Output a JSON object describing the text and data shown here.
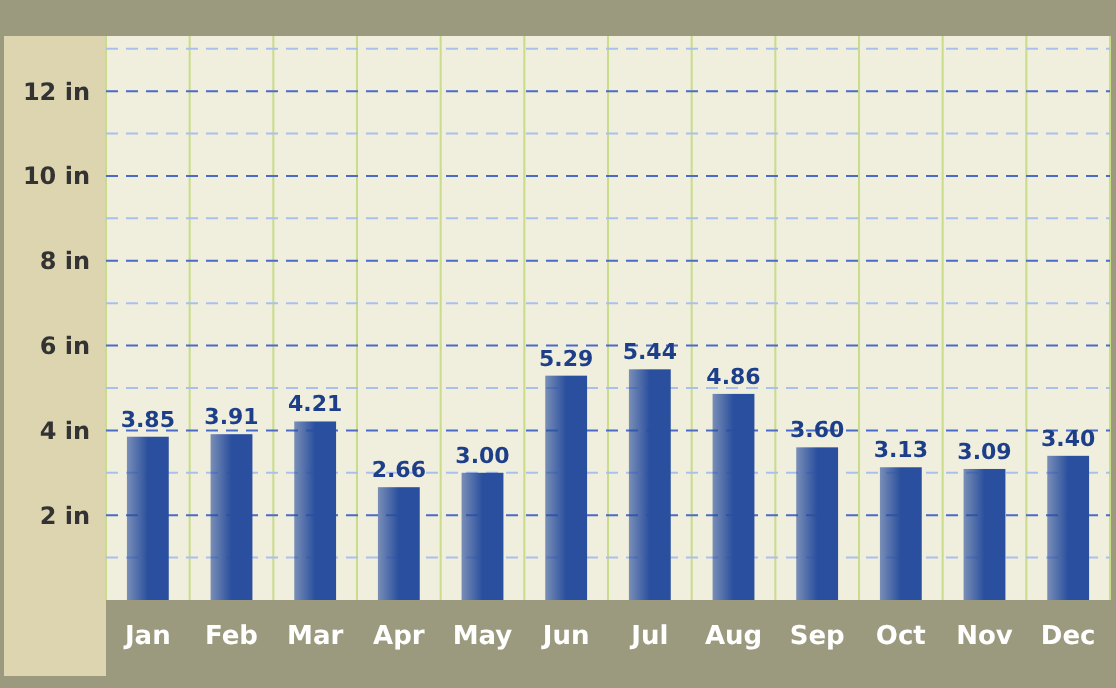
{
  "chart_data": {
    "type": "bar",
    "categories": [
      "Jan",
      "Feb",
      "Mar",
      "Apr",
      "May",
      "Jun",
      "Jul",
      "Aug",
      "Sep",
      "Oct",
      "Nov",
      "Dec"
    ],
    "values": [
      3.85,
      3.91,
      4.21,
      2.66,
      3.0,
      5.29,
      5.44,
      4.86,
      3.6,
      3.13,
      3.09,
      3.4
    ],
    "value_labels": [
      "3.85",
      "3.91",
      "4.21",
      "2.66",
      "3.00",
      "5.29",
      "5.44",
      "4.86",
      "3.60",
      "3.13",
      "3.09",
      "3.40"
    ],
    "color": "#2a4f9e",
    "ylim": [
      0,
      13.3
    ],
    "yticks": [
      {
        "value": 1,
        "label": null
      },
      {
        "value": 2,
        "label": "2 in"
      },
      {
        "value": 3,
        "label": null
      },
      {
        "value": 4,
        "label": "4 in"
      },
      {
        "value": 5,
        "label": null
      },
      {
        "value": 6,
        "label": "6 in"
      },
      {
        "value": 7,
        "label": null
      },
      {
        "value": 8,
        "label": "8 in"
      },
      {
        "value": 9,
        "label": null
      },
      {
        "value": 10,
        "label": "10 in"
      },
      {
        "value": 11,
        "label": null
      },
      {
        "value": 12,
        "label": "12 in"
      },
      {
        "value": 13,
        "label": null
      }
    ],
    "grid": true
  }
}
